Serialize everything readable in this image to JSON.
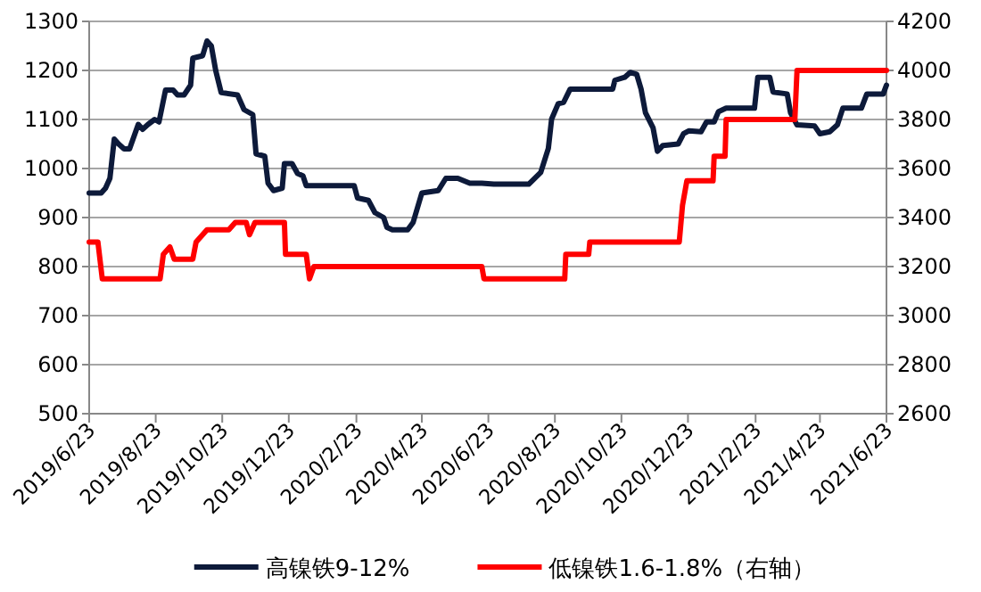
{
  "chart_data": {
    "type": "line",
    "xlim": [
      "2019-06-23",
      "2021-06-23"
    ],
    "xticks": [
      {
        "value": "2019-06-23",
        "label": "2019/6/23"
      },
      {
        "value": "2019-08-23",
        "label": "2019/8/23"
      },
      {
        "value": "2019-10-23",
        "label": "2019/10/23"
      },
      {
        "value": "2019-12-23",
        "label": "2019/12/23"
      },
      {
        "value": "2020-02-23",
        "label": "2020/2/23"
      },
      {
        "value": "2020-04-23",
        "label": "2020/4/23"
      },
      {
        "value": "2020-06-23",
        "label": "2020/6/23"
      },
      {
        "value": "2020-08-23",
        "label": "2020/8/23"
      },
      {
        "value": "2020-10-23",
        "label": "2020/10/23"
      },
      {
        "value": "2020-12-23",
        "label": "2020/12/23"
      },
      {
        "value": "2021-02-23",
        "label": "2021/2/23"
      },
      {
        "value": "2021-04-23",
        "label": "2021/4/23"
      },
      {
        "value": "2021-06-23",
        "label": "2021/6/23"
      }
    ],
    "ylim": [
      500,
      1300
    ],
    "yticks": [
      500,
      600,
      700,
      800,
      900,
      1000,
      1100,
      1200,
      1300
    ],
    "y2lim": [
      2600,
      4200
    ],
    "y2ticks": [
      2600,
      2800,
      3000,
      3200,
      3400,
      3600,
      3800,
      4000,
      4200
    ],
    "grid": "y",
    "legend": "bottom",
    "series": [
      {
        "name": "高镍铁9-12%",
        "color": "#0d1a3a",
        "x": [
          "2019-06-23",
          "2019-07-04",
          "2019-07-08",
          "2019-07-12",
          "2019-07-16",
          "2019-07-20",
          "2019-07-25",
          "2019-07-30",
          "2019-08-07",
          "2019-08-11",
          "2019-08-16",
          "2019-08-22",
          "2019-08-26",
          "2019-09-01",
          "2019-09-08",
          "2019-09-12",
          "2019-09-18",
          "2019-09-24",
          "2019-09-26",
          "2019-10-05",
          "2019-10-09",
          "2019-10-13",
          "2019-10-17",
          "2019-10-22",
          "2019-11-06",
          "2019-11-12",
          "2019-11-20",
          "2019-11-23",
          "2019-12-01",
          "2019-12-04",
          "2019-12-09",
          "2019-12-17",
          "2019-12-19",
          "2019-12-26",
          "2019-12-31",
          "2020-01-05",
          "2020-01-08",
          "2020-02-21",
          "2020-02-24",
          "2020-03-05",
          "2020-03-11",
          "2020-03-19",
          "2020-03-22",
          "2020-03-27",
          "2020-04-10",
          "2020-04-15",
          "2020-04-23",
          "2020-05-08",
          "2020-05-15",
          "2020-05-26",
          "2020-06-06",
          "2020-06-17",
          "2020-06-28",
          "2020-07-30",
          "2020-08-10",
          "2020-08-17",
          "2020-08-20",
          "2020-08-26",
          "2020-08-31",
          "2020-09-06",
          "2020-10-15",
          "2020-10-17",
          "2020-10-26",
          "2020-10-31",
          "2020-11-06",
          "2020-11-10",
          "2020-11-14",
          "2020-11-21",
          "2020-11-25",
          "2020-11-30",
          "2020-12-14",
          "2020-12-19",
          "2020-12-24",
          "2021-01-04",
          "2021-01-09",
          "2021-01-16",
          "2021-01-20",
          "2021-01-27",
          "2021-02-22",
          "2021-02-25",
          "2021-03-08",
          "2021-03-11",
          "2021-03-24",
          "2021-03-27",
          "2021-04-02",
          "2021-04-18",
          "2021-04-23",
          "2021-05-02",
          "2021-05-09",
          "2021-05-14",
          "2021-05-31",
          "2021-06-05",
          "2021-06-20",
          "2021-06-23"
        ],
        "values": [
          950,
          950,
          960,
          980,
          1060,
          1050,
          1040,
          1040,
          1090,
          1080,
          1090,
          1100,
          1095,
          1160,
          1160,
          1150,
          1150,
          1170,
          1225,
          1230,
          1260,
          1250,
          1200,
          1155,
          1150,
          1120,
          1110,
          1030,
          1025,
          970,
          955,
          960,
          1010,
          1010,
          990,
          985,
          965,
          965,
          940,
          935,
          910,
          900,
          880,
          875,
          875,
          890,
          950,
          955,
          980,
          980,
          970,
          970,
          968,
          968,
          992,
          1041,
          1101,
          1132,
          1135,
          1162,
          1162,
          1180,
          1186,
          1196,
          1192,
          1162,
          1114,
          1083,
          1035,
          1047,
          1050,
          1071,
          1077,
          1075,
          1095,
          1095,
          1116,
          1123,
          1123,
          1186,
          1186,
          1156,
          1152,
          1114,
          1089,
          1087,
          1071,
          1075,
          1089,
          1123,
          1123,
          1152,
          1152,
          1170
        ]
      },
      {
        "name": "低镍铁1.6-1.8%（右轴）",
        "color": "#ff0000",
        "axis": "y2",
        "x": [
          "2019-06-23",
          "2019-07-01",
          "2019-07-05",
          "2019-08-27",
          "2019-08-30",
          "2019-09-05",
          "2019-09-09",
          "2019-09-26",
          "2019-09-29",
          "2019-10-09",
          "2019-10-29",
          "2019-11-04",
          "2019-11-14",
          "2019-11-17",
          "2019-11-22",
          "2019-12-19",
          "2019-12-20",
          "2020-01-08",
          "2020-01-11",
          "2020-01-15",
          "2020-06-17",
          "2020-06-19",
          "2020-09-01",
          "2020-09-02",
          "2020-09-23",
          "2020-09-24",
          "2020-12-15",
          "2020-12-18",
          "2020-12-22",
          "2021-01-15",
          "2021-01-16",
          "2021-01-26",
          "2021-01-27",
          "2021-03-31",
          "2021-04-02",
          "2021-06-23"
        ],
        "values": [
          3300,
          3300,
          3150,
          3150,
          3250,
          3280,
          3230,
          3230,
          3300,
          3350,
          3350,
          3380,
          3380,
          3330,
          3380,
          3380,
          3250,
          3250,
          3150,
          3200,
          3200,
          3150,
          3150,
          3250,
          3250,
          3300,
          3300,
          3450,
          3550,
          3550,
          3650,
          3650,
          3800,
          3800,
          4000,
          4000
        ]
      }
    ]
  }
}
